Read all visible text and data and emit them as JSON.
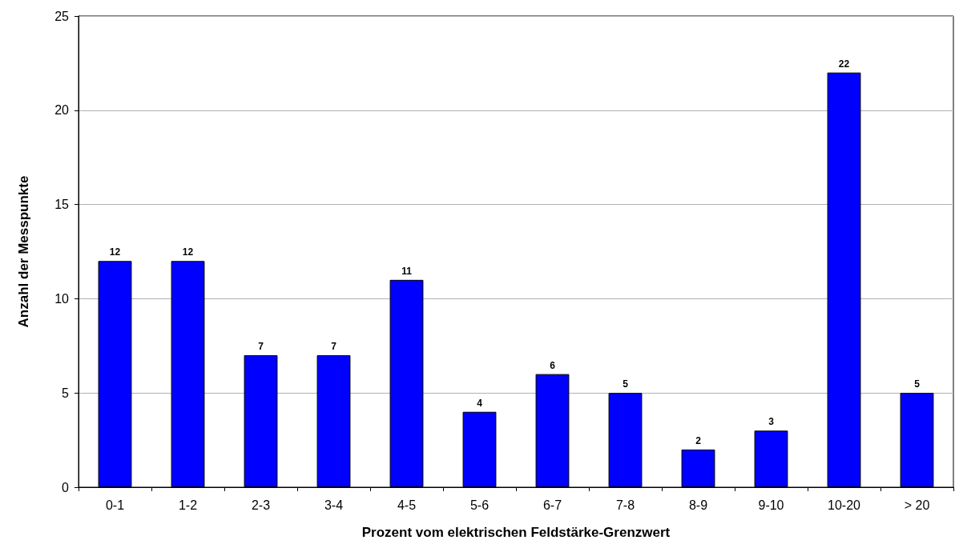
{
  "chart_data": {
    "type": "bar",
    "xlabel": "Prozent vom elektrischen Feldstärke-Grenzwert",
    "ylabel": "Anzahl der Messpunkte",
    "categories": [
      "0-1",
      "1-2",
      "2-3",
      "3-4",
      "4-5",
      "5-6",
      "6-7",
      "7-8",
      "8-9",
      "9-10",
      "10-20",
      "> 20"
    ],
    "values": [
      12,
      12,
      7,
      7,
      11,
      4,
      6,
      5,
      2,
      3,
      22,
      5
    ],
    "color": "#0000ff",
    "ylim": [
      0,
      25
    ],
    "yticks": [
      0,
      5,
      10,
      15,
      20,
      25
    ],
    "grid": "y",
    "data_labels": true
  }
}
